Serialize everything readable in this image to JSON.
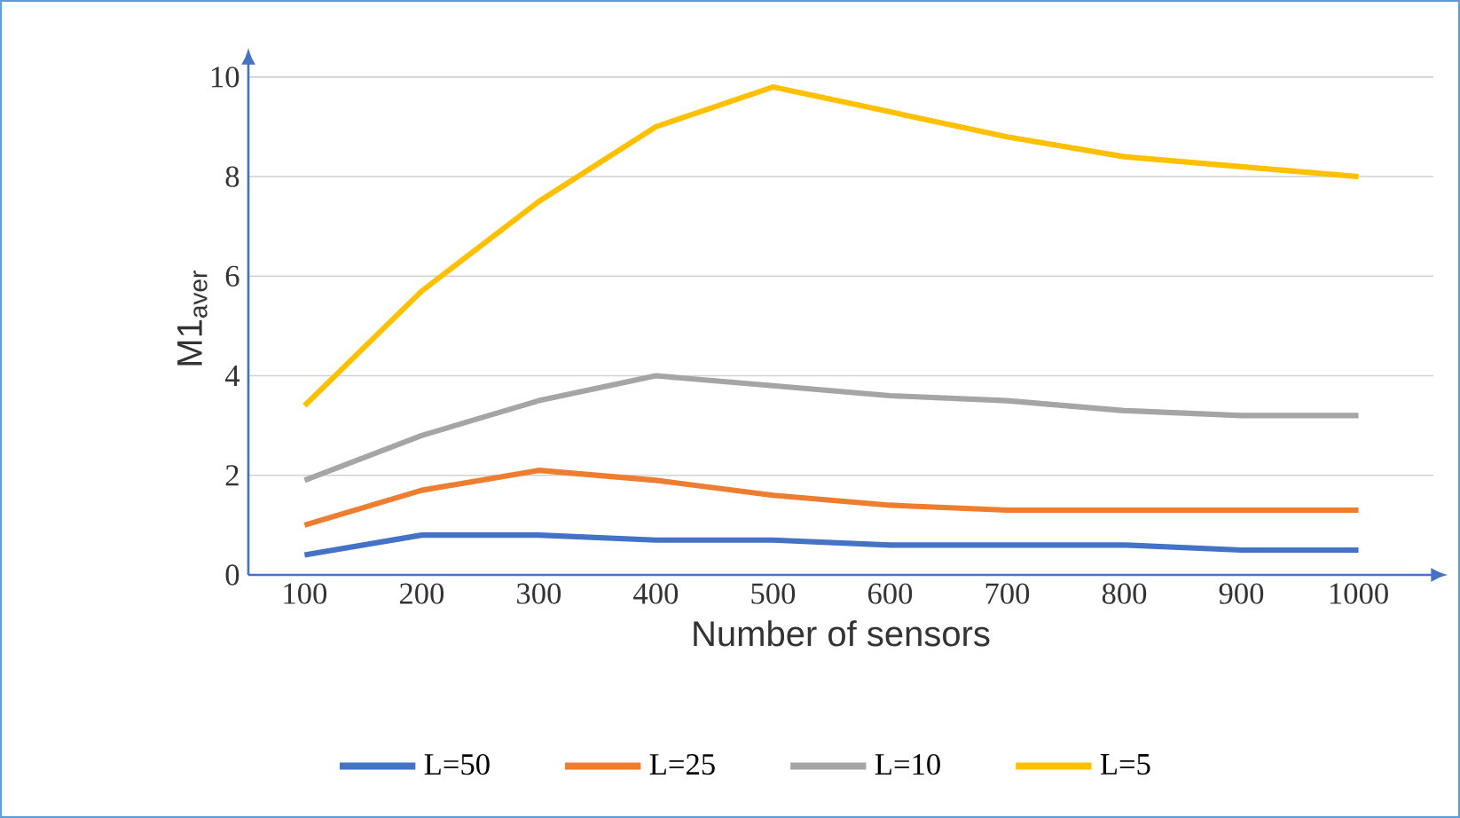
{
  "chart_data": {
    "type": "line",
    "xlabel": "Number of sensors",
    "ylabel": "M1$_{aver}$",
    "categories": [
      "100",
      "200",
      "300",
      "400",
      "500",
      "600",
      "700",
      "800",
      "900",
      "1000"
    ],
    "ylim": [
      0,
      10
    ],
    "yticks": [
      0,
      2,
      4,
      6,
      8,
      10
    ],
    "grid": "y",
    "legend": "bottom",
    "marker": "none",
    "line_style": "solid",
    "series": [
      {
        "name": "L=50",
        "color": "#4472c4",
        "values": [
          0.4,
          0.8,
          0.8,
          0.7,
          0.7,
          0.6,
          0.6,
          0.6,
          0.5,
          0.5
        ]
      },
      {
        "name": "L=25",
        "color": "#ed7d31",
        "values": [
          1.0,
          1.7,
          2.1,
          1.9,
          1.6,
          1.4,
          1.3,
          1.3,
          1.3,
          1.3
        ]
      },
      {
        "name": "L=10",
        "color": "#a5a5a5",
        "values": [
          1.9,
          2.8,
          3.5,
          4.0,
          3.8,
          3.6,
          3.5,
          3.3,
          3.2,
          3.2
        ]
      },
      {
        "name": "L=5",
        "color": "#ffc000",
        "values": [
          3.4,
          5.7,
          7.5,
          9.0,
          9.8,
          9.3,
          8.8,
          8.4,
          8.2,
          8.0
        ]
      }
    ]
  }
}
